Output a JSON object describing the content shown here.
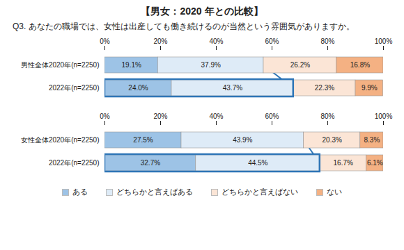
{
  "chart_data": [
    {
      "type": "bar",
      "title": "【男女：2020 年との比較】",
      "subtitle": "Q3. あなたの職場では、女性は出産しても働き続けるのが当然という雰囲気がありますか。",
      "orientation": "horizontal",
      "stacked": true,
      "data_labels": true,
      "grid": false,
      "categories": [
        "男性全体2020年(n=2250)",
        "2022年(n=2250)"
      ],
      "xlim": [
        0,
        100
      ],
      "xticks": [
        {
          "value": 0,
          "label": "0%"
        },
        {
          "value": 20,
          "label": "20%"
        },
        {
          "value": 40,
          "label": "40%"
        },
        {
          "value": 60,
          "label": "60%"
        },
        {
          "value": 80,
          "label": "80%"
        },
        {
          "value": 100,
          "label": "100%"
        }
      ],
      "series": [
        {
          "name": "ある",
          "color": "#9dc3e6",
          "values": [
            19.1,
            24.0
          ],
          "value_labels": [
            "19.1%",
            "24.0%"
          ]
        },
        {
          "name": "どちらかと言えばある",
          "color": "#deebf7",
          "values": [
            37.9,
            43.7
          ],
          "value_labels": [
            "37.9%",
            "43.7%"
          ]
        },
        {
          "name": "どちらかと言えばない",
          "color": "#fbe5d6",
          "values": [
            26.2,
            22.3
          ],
          "value_labels": [
            "26.2%",
            "22.3%"
          ]
        },
        {
          "name": "ない",
          "color": "#f4b183",
          "values": [
            16.8,
            9.9
          ],
          "value_labels": [
            "16.8%",
            "9.9%"
          ]
        }
      ]
    },
    {
      "type": "bar",
      "orientation": "horizontal",
      "stacked": true,
      "data_labels": true,
      "grid": false,
      "legend": "bottom",
      "categories": [
        "女性全体2020年(n=2250)",
        "2022年(n=2250)"
      ],
      "xlim": [
        0,
        100
      ],
      "xticks": [
        {
          "value": 0,
          "label": "0%"
        },
        {
          "value": 20,
          "label": "20%"
        },
        {
          "value": 40,
          "label": "40%"
        },
        {
          "value": 60,
          "label": "60%"
        },
        {
          "value": 80,
          "label": "80%"
        },
        {
          "value": 100,
          "label": "100%"
        }
      ],
      "series": [
        {
          "name": "ある",
          "color": "#9dc3e6",
          "values": [
            27.5,
            32.7
          ],
          "value_labels": [
            "27.5%",
            "32.7%"
          ]
        },
        {
          "name": "どちらかと言えばある",
          "color": "#deebf7",
          "values": [
            43.9,
            44.5
          ],
          "value_labels": [
            "43.9%",
            "44.5%"
          ]
        },
        {
          "name": "どちらかと言えばない",
          "color": "#fbe5d6",
          "values": [
            20.3,
            16.7
          ],
          "value_labels": [
            "20.3%",
            "16.7%"
          ]
        },
        {
          "name": "ない",
          "color": "#f4b183",
          "values": [
            8.3,
            6.1
          ],
          "value_labels": [
            "8.3%",
            "6.1%"
          ]
        }
      ]
    }
  ]
}
